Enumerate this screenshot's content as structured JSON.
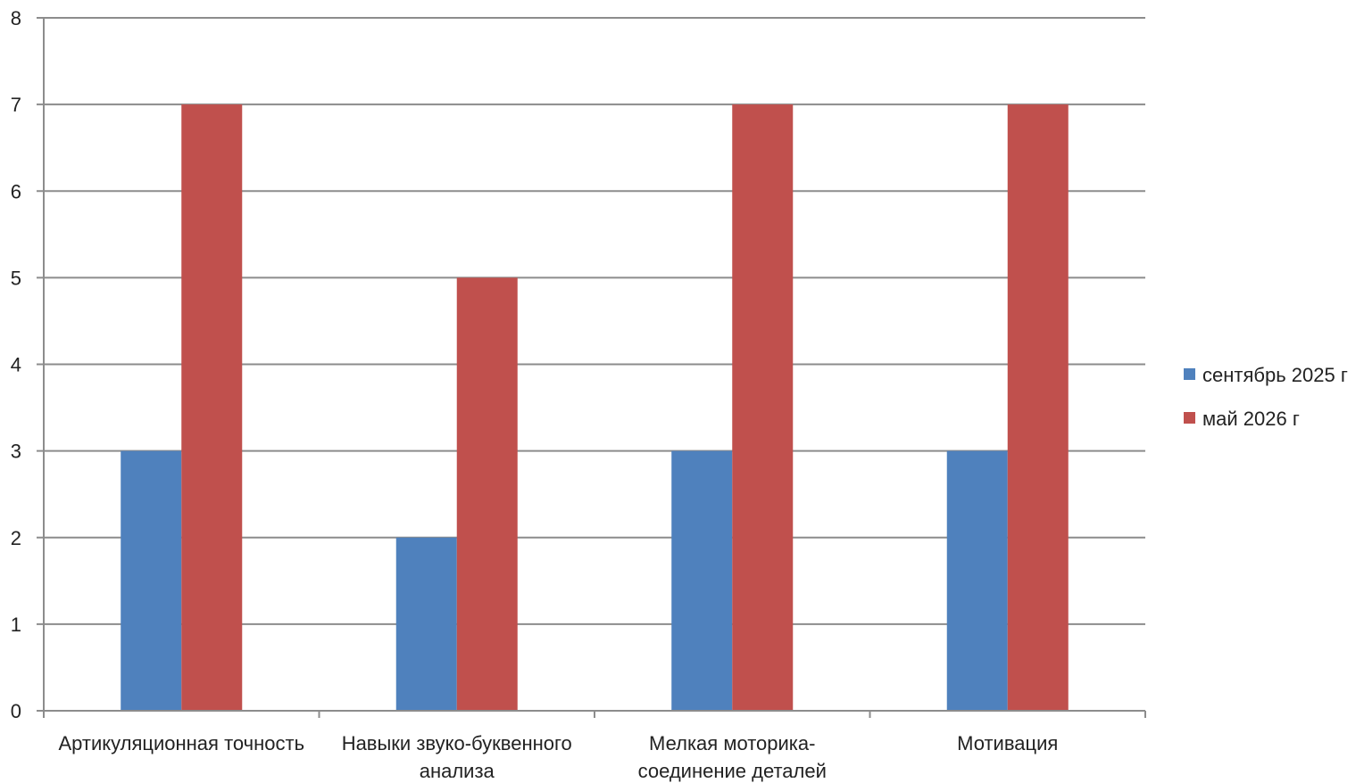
{
  "chart_data": {
    "type": "bar",
    "title": "",
    "xlabel": "",
    "ylabel": "",
    "categories": [
      [
        "Артикуляционная точность"
      ],
      [
        "Навыки звуко-буквенного",
        "анализа"
      ],
      [
        "Мелкая моторика-",
        "соединение деталей"
      ],
      [
        "Мотивация"
      ]
    ],
    "series": [
      {
        "name": "сентябрь 2025 г",
        "color": "#4F81BD",
        "values": [
          3,
          2,
          3,
          3
        ]
      },
      {
        "name": "май 2026 г",
        "color": "#C0504D",
        "values": [
          7,
          5,
          7,
          7
        ]
      }
    ],
    "ylim": [
      0,
      8
    ],
    "yticks": [
      0,
      1,
      2,
      3,
      4,
      5,
      6,
      7,
      8
    ],
    "grid": true,
    "legend_position": "right"
  }
}
